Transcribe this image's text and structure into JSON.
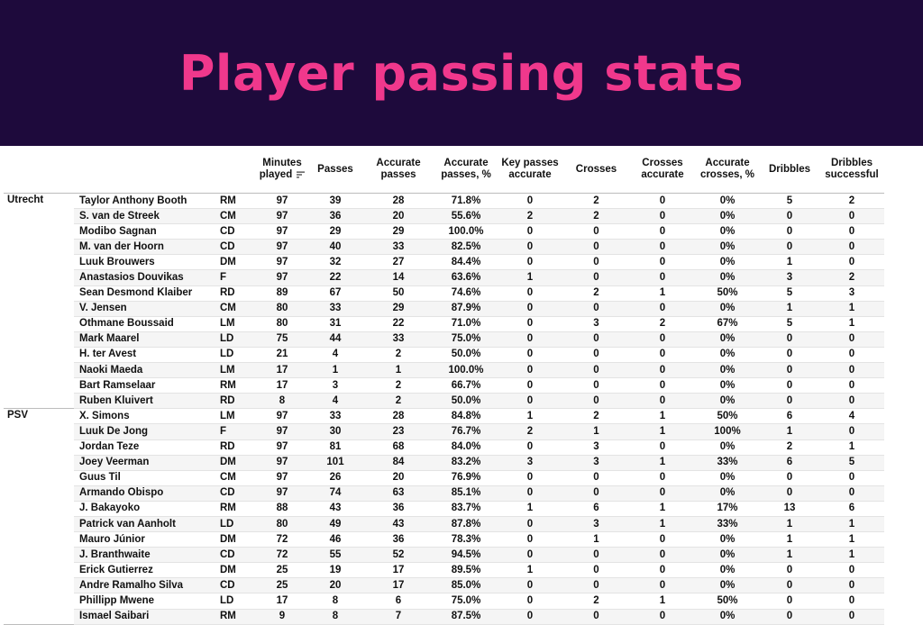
{
  "title": "Player passing stats",
  "columns": {
    "minutes": "Minutes played",
    "passes": "Passes",
    "accurate_passes": "Accurate passes",
    "accurate_passes_pct": "Accurate passes, %",
    "key_passes": "Key passes accurate",
    "crosses": "Crosses",
    "crosses_accurate": "Crosses accurate",
    "accurate_crosses_pct": "Accurate crosses, %",
    "dribbles": "Dribbles",
    "dribbles_successful": "Dribbles successful"
  },
  "teams": [
    {
      "name": "Utrecht",
      "players": [
        [
          "Taylor Anthony Booth",
          "RM",
          "97",
          "39",
          "28",
          "71.8%",
          "0",
          "2",
          "0",
          "0%",
          "5",
          "2"
        ],
        [
          "S. van de Streek",
          "CM",
          "97",
          "36",
          "20",
          "55.6%",
          "2",
          "2",
          "0",
          "0%",
          "0",
          "0"
        ],
        [
          "Modibo Sagnan",
          "CD",
          "97",
          "29",
          "29",
          "100.0%",
          "0",
          "0",
          "0",
          "0%",
          "0",
          "0"
        ],
        [
          "M. van der Hoorn",
          "CD",
          "97",
          "40",
          "33",
          "82.5%",
          "0",
          "0",
          "0",
          "0%",
          "0",
          "0"
        ],
        [
          "Luuk Brouwers",
          "DM",
          "97",
          "32",
          "27",
          "84.4%",
          "0",
          "0",
          "0",
          "0%",
          "1",
          "0"
        ],
        [
          "Anastasios Douvikas",
          "F",
          "97",
          "22",
          "14",
          "63.6%",
          "1",
          "0",
          "0",
          "0%",
          "3",
          "2"
        ],
        [
          "Sean Desmond Klaiber",
          "RD",
          "89",
          "67",
          "50",
          "74.6%",
          "0",
          "2",
          "1",
          "50%",
          "5",
          "3"
        ],
        [
          "V. Jensen",
          "CM",
          "80",
          "33",
          "29",
          "87.9%",
          "0",
          "0",
          "0",
          "0%",
          "1",
          "1"
        ],
        [
          "Othmane Boussaid",
          "LM",
          "80",
          "31",
          "22",
          "71.0%",
          "0",
          "3",
          "2",
          "67%",
          "5",
          "1"
        ],
        [
          "Mark Maarel",
          "LD",
          "75",
          "44",
          "33",
          "75.0%",
          "0",
          "0",
          "0",
          "0%",
          "0",
          "0"
        ],
        [
          "H. ter Avest",
          "LD",
          "21",
          "4",
          "2",
          "50.0%",
          "0",
          "0",
          "0",
          "0%",
          "0",
          "0"
        ],
        [
          "Naoki Maeda",
          "LM",
          "17",
          "1",
          "1",
          "100.0%",
          "0",
          "0",
          "0",
          "0%",
          "0",
          "0"
        ],
        [
          "Bart Ramselaar",
          "RM",
          "17",
          "3",
          "2",
          "66.7%",
          "0",
          "0",
          "0",
          "0%",
          "0",
          "0"
        ],
        [
          "Ruben Kluivert",
          "RD",
          "8",
          "4",
          "2",
          "50.0%",
          "0",
          "0",
          "0",
          "0%",
          "0",
          "0"
        ]
      ]
    },
    {
      "name": "PSV",
      "players": [
        [
          "X. Simons",
          "LM",
          "97",
          "33",
          "28",
          "84.8%",
          "1",
          "2",
          "1",
          "50%",
          "6",
          "4"
        ],
        [
          "Luuk De Jong",
          "F",
          "97",
          "30",
          "23",
          "76.7%",
          "2",
          "1",
          "1",
          "100%",
          "1",
          "0"
        ],
        [
          "Jordan Teze",
          "RD",
          "97",
          "81",
          "68",
          "84.0%",
          "0",
          "3",
          "0",
          "0%",
          "2",
          "1"
        ],
        [
          "Joey Veerman",
          "DM",
          "97",
          "101",
          "84",
          "83.2%",
          "3",
          "3",
          "1",
          "33%",
          "6",
          "5"
        ],
        [
          "Guus Til",
          "CM",
          "97",
          "26",
          "20",
          "76.9%",
          "0",
          "0",
          "0",
          "0%",
          "0",
          "0"
        ],
        [
          "Armando Obispo",
          "CD",
          "97",
          "74",
          "63",
          "85.1%",
          "0",
          "0",
          "0",
          "0%",
          "0",
          "0"
        ],
        [
          "J. Bakayoko",
          "RM",
          "88",
          "43",
          "36",
          "83.7%",
          "1",
          "6",
          "1",
          "17%",
          "13",
          "6"
        ],
        [
          "Patrick van Aanholt",
          "LD",
          "80",
          "49",
          "43",
          "87.8%",
          "0",
          "3",
          "1",
          "33%",
          "1",
          "1"
        ],
        [
          "Mauro Júnior",
          "DM",
          "72",
          "46",
          "36",
          "78.3%",
          "0",
          "1",
          "0",
          "0%",
          "1",
          "1"
        ],
        [
          "J. Branthwaite",
          "CD",
          "72",
          "55",
          "52",
          "94.5%",
          "0",
          "0",
          "0",
          "0%",
          "1",
          "1"
        ],
        [
          "Erick Gutierrez",
          "DM",
          "25",
          "19",
          "17",
          "89.5%",
          "1",
          "0",
          "0",
          "0%",
          "0",
          "0"
        ],
        [
          "Andre Ramalho Silva",
          "CD",
          "25",
          "20",
          "17",
          "85.0%",
          "0",
          "0",
          "0",
          "0%",
          "0",
          "0"
        ],
        [
          "Phillipp Mwene",
          "LD",
          "17",
          "8",
          "6",
          "75.0%",
          "0",
          "2",
          "1",
          "50%",
          "0",
          "0"
        ],
        [
          "Ismael Saibari",
          "RM",
          "9",
          "8",
          "7",
          "87.5%",
          "0",
          "0",
          "0",
          "0%",
          "0",
          "0"
        ]
      ]
    }
  ],
  "colors": {
    "banner_bg": "#1e0a3c",
    "title": "#f0388c"
  },
  "icons": {
    "sort": "sort-descending-icon"
  }
}
